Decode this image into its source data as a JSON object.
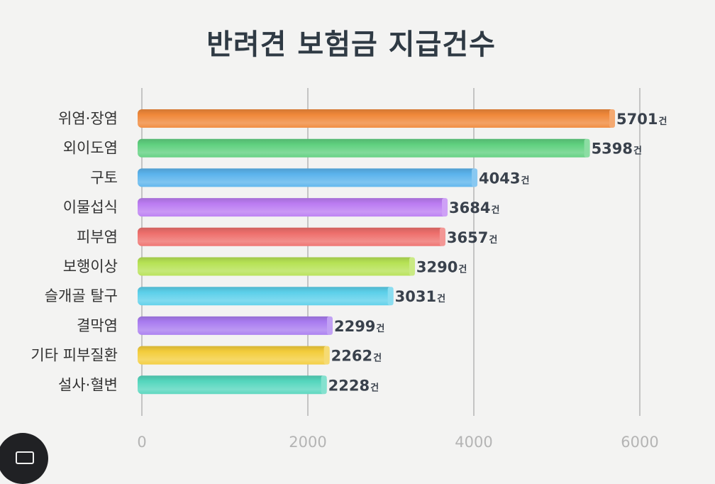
{
  "chart_data": {
    "type": "bar",
    "orientation": "horizontal",
    "title": "반려견 보험금 지급건수",
    "categories": [
      "위염·장염",
      "외이도염",
      "구토",
      "이물섭식",
      "피부염",
      "보행이상",
      "슬개골 탈구",
      "결막염",
      "기타 피부질환",
      "설사·혈변"
    ],
    "values": [
      5701,
      5398,
      4043,
      3684,
      3657,
      3290,
      3031,
      2299,
      2262,
      2228
    ],
    "value_unit": "건",
    "colors": [
      "#f0883a",
      "#5fd07f",
      "#5bb3ec",
      "#bb7cf2",
      "#ee6f6c",
      "#b6e254",
      "#5cd0ea",
      "#a97cf0",
      "#f3cd3c",
      "#55d6bd"
    ],
    "xlim": [
      0,
      6000
    ],
    "xticks": [
      0,
      2000,
      4000,
      6000
    ],
    "grid": true,
    "legend": "none"
  }
}
